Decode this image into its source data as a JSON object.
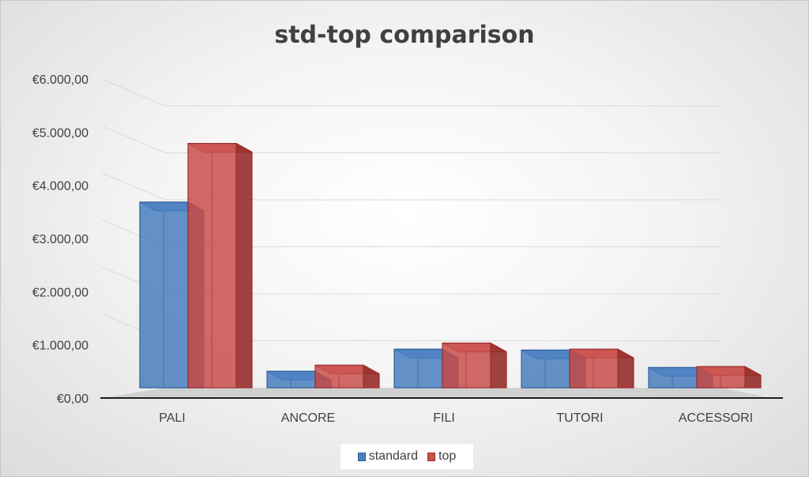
{
  "chart_data": {
    "type": "bar",
    "variant": "clustered-3d",
    "title": "std-top comparison",
    "categories": [
      "PALI",
      "ANCORE",
      "FILI",
      "TUTORI",
      "ACCESSORI"
    ],
    "series": [
      {
        "name": "standard",
        "values": [
          3950,
          350,
          820,
          800,
          430
        ],
        "color": "#4a7ebf"
      },
      {
        "name": "top",
        "values": [
          5200,
          480,
          950,
          820,
          450
        ],
        "color": "#c9504b"
      }
    ],
    "y_ticks": [
      "€0,00",
      "€1.000,00",
      "€2.000,00",
      "€3.000,00",
      "€4.000,00",
      "€5.000,00",
      "€6.000,00"
    ],
    "ylim": [
      0,
      6000
    ],
    "grid": true,
    "legend_position": "bottom"
  }
}
